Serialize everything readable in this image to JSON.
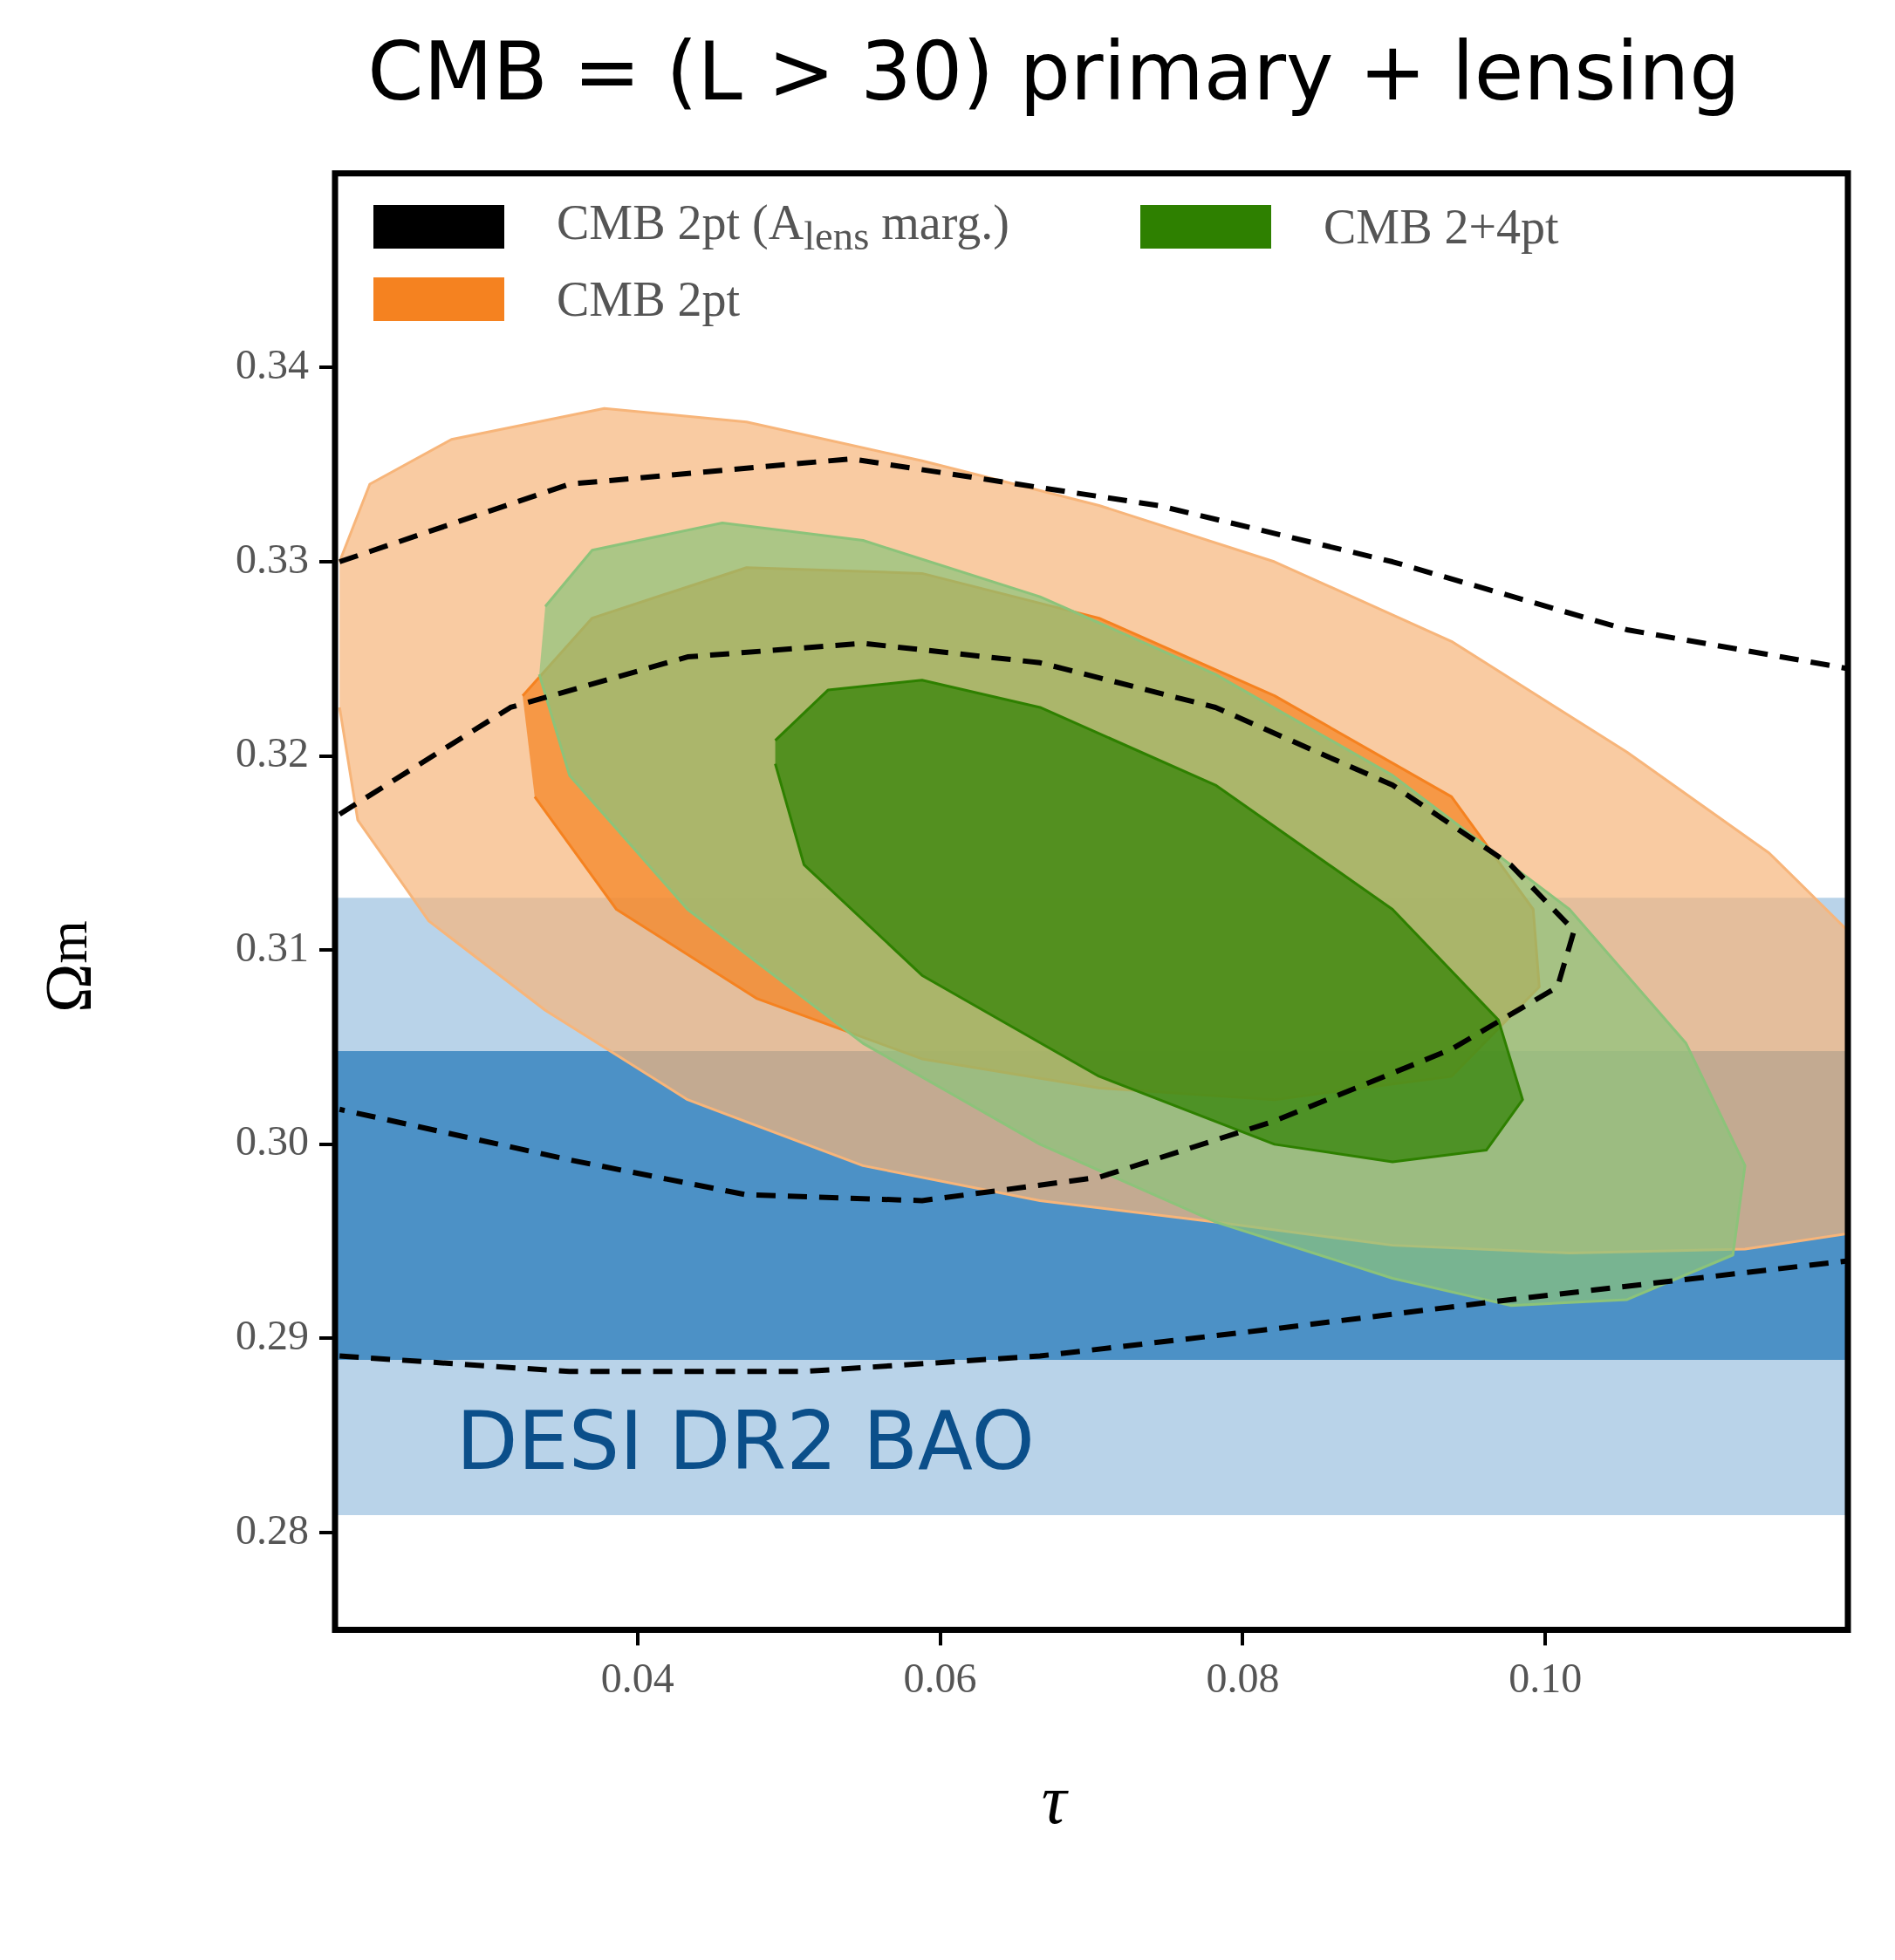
{
  "chart_data": {
    "type": "area",
    "title": "CMB = (L > 30) primary + lensing",
    "xlabel": "τ",
    "ylabel": "Ω$_{m}$",
    "xlim": [
      0.02,
      0.12
    ],
    "ylim": [
      0.275,
      0.35
    ],
    "xticks": [
      0.04,
      0.06,
      0.08,
      {
        "value": 0.1,
        "label": "0.10"
      }
    ],
    "yticks": [
      0.28,
      0.29,
      {
        "value": 0.3,
        "label": "0.30"
      },
      0.31,
      0.32,
      0.33,
      0.34
    ],
    "grid": false,
    "legend": "top left",
    "bands": [
      {
        "axis": "y",
        "from": 0.2809,
        "to": 0.3127,
        "color": "#b9d3e9"
      },
      {
        "axis": "y",
        "from": 0.2889,
        "to": 0.3048,
        "color": "#4c91c6"
      }
    ],
    "annotations": [
      "DESI DR2 BAO"
    ],
    "series": [
      {
        "name": "CMB 2pt (A$_{lens}$ marg.)",
        "type": "line",
        "line_style": "dashed",
        "color": "#000000",
        "x": [
          0.0203,
          0.0355,
          0.0541,
          0.0744,
          0.0899,
          0.1054,
          0.12,
          null,
          0.0203,
          0.0355,
          0.051,
          0.0666,
          0.0821,
          0.0977,
          0.12
        ],
        "values": [
          0.33,
          0.334,
          0.3353,
          0.3329,
          0.33,
          0.3265,
          0.3245,
          null,
          0.2891,
          0.2883,
          0.2883,
          0.2891,
          0.2905,
          0.292,
          0.294
        ]
      },
      {
        "type": "line",
        "line_style": "dashed",
        "color": "#000000",
        "x": [
          0.0203,
          0.0316,
          0.0433,
          0.0549,
          0.0666,
          0.0782,
          0.0899,
          0.0977,
          0.1019,
          0.1008,
          0.0938,
          0.0821,
          0.0705,
          0.0588,
          0.0472,
          0.0355,
          0.0203
        ],
        "values": [
          0.317,
          0.3225,
          0.3251,
          0.3258,
          0.3248,
          0.3225,
          0.3185,
          0.3144,
          0.311,
          0.3081,
          0.3049,
          0.3012,
          0.2983,
          0.2971,
          0.2974,
          0.2992,
          0.3018
        ]
      },
      {
        "color": "#f7b57a",
        "x": [
          0.0203,
          0.0223,
          0.0277,
          0.0378,
          0.0472,
          0.0588,
          0.0705,
          0.0821,
          0.0938,
          0.1054,
          0.1148,
          0.12,
          0.12,
          0.1132,
          0.1016,
          0.0899,
          0.0782,
          0.0666,
          0.0549,
          0.0433,
          0.0339,
          0.0262,
          0.0215,
          0.0203
        ],
        "values": [
          0.33,
          0.334,
          0.3363,
          0.3379,
          0.3372,
          0.3352,
          0.3329,
          0.33,
          0.3259,
          0.3202,
          0.315,
          0.311,
          0.2954,
          0.2946,
          0.2944,
          0.2948,
          0.296,
          0.2971,
          0.2989,
          0.3023,
          0.3069,
          0.3115,
          0.3167,
          0.3225
        ]
      },
      {
        "name": "CMB 2pt",
        "color": "#f58220",
        "x": [
          0.0324,
          0.037,
          0.0472,
          0.0588,
          0.0705,
          0.0821,
          0.0938,
          0.0992,
          0.0996,
          0.0938,
          0.0821,
          0.0705,
          0.0588,
          0.0479,
          0.0386,
          0.0332
        ],
        "values": [
          0.3231,
          0.3271,
          0.3297,
          0.3294,
          0.3271,
          0.3231,
          0.3179,
          0.3121,
          0.3081,
          0.3035,
          0.3023,
          0.3029,
          0.3044,
          0.3075,
          0.3121,
          0.3179
        ]
      },
      {
        "color": "#8cc37a",
        "x": [
          0.0339,
          0.037,
          0.0456,
          0.0549,
          0.0666,
          0.0782,
          0.0899,
          0.1016,
          0.1093,
          0.1132,
          0.1124,
          0.1054,
          0.0977,
          0.0899,
          0.0782,
          0.0666,
          0.0549,
          0.0433,
          0.0355,
          0.0335
        ],
        "values": [
          0.3277,
          0.3306,
          0.332,
          0.3311,
          0.3282,
          0.3242,
          0.319,
          0.3121,
          0.3052,
          0.2989,
          0.2943,
          0.292,
          0.2917,
          0.2931,
          0.296,
          0.3,
          0.3052,
          0.3121,
          0.319,
          0.3242
        ]
      },
      {
        "name": "CMB 2+4pt",
        "color": "#2e8000",
        "x": [
          0.0491,
          0.0526,
          0.0588,
          0.0666,
          0.0782,
          0.0899,
          0.0969,
          0.0985,
          0.0961,
          0.0899,
          0.0821,
          0.0705,
          0.0588,
          0.051,
          0.0491
        ],
        "values": [
          0.3208,
          0.3234,
          0.3239,
          0.3225,
          0.3185,
          0.3121,
          0.3064,
          0.3023,
          0.2997,
          0.2991,
          0.3,
          0.3035,
          0.3087,
          0.3144,
          0.3196
        ]
      }
    ]
  }
}
